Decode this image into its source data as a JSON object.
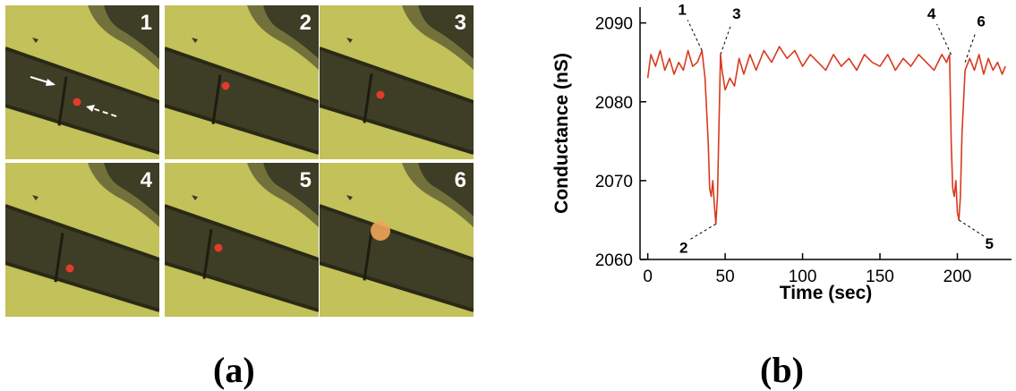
{
  "panels": {
    "a": {
      "label": "(a)"
    },
    "b": {
      "label": "(b)"
    }
  },
  "frames": [
    {
      "number": "1",
      "dot": "small",
      "arrows": true
    },
    {
      "number": "2",
      "dot": "small",
      "arrows": false
    },
    {
      "number": "3",
      "dot": "small",
      "arrows": false
    },
    {
      "number": "4",
      "dot": "small",
      "arrows": false
    },
    {
      "number": "5",
      "dot": "small",
      "arrows": false
    },
    {
      "number": "6",
      "dot": "large",
      "arrows": false
    }
  ],
  "colors": {
    "channel_fill": "#3e3d25",
    "background_fill": "#c2c15a",
    "dot": "#e23b2a",
    "dot_large": "#f0a45a",
    "trace": "#d83a1e"
  },
  "chart_data": {
    "type": "line",
    "title": "",
    "xlabel": "Time (sec)",
    "ylabel": "Conductance (nS)",
    "xlim": [
      -5,
      235
    ],
    "ylim": [
      2060,
      2092
    ],
    "xticks": [
      0,
      50,
      100,
      150,
      200
    ],
    "yticks": [
      2060,
      2070,
      2080,
      2090
    ],
    "series": [
      {
        "x": [
          0,
          2,
          5,
          8,
          11,
          14,
          17,
          20,
          23,
          26,
          29,
          32,
          35,
          37,
          39,
          40,
          41,
          42,
          43,
          44,
          45,
          46,
          47,
          48,
          50,
          53,
          56,
          59,
          62,
          66,
          70,
          75,
          80,
          85,
          90,
          95,
          100,
          105,
          110,
          115,
          120,
          125,
          130,
          135,
          140,
          145,
          150,
          155,
          160,
          165,
          170,
          175,
          180,
          185,
          190,
          193,
          195,
          196,
          197,
          198,
          199,
          200,
          201,
          202,
          203,
          205,
          208,
          211,
          214,
          217,
          220,
          223,
          226,
          229,
          231
        ],
        "values": [
          2083,
          2086,
          2084.5,
          2086.5,
          2084,
          2085.5,
          2083.5,
          2085,
          2084,
          2086.5,
          2084.5,
          2085,
          2086.5,
          2083,
          2075,
          2069,
          2068,
          2070,
          2067,
          2064.5,
          2068,
          2077,
          2086,
          2084,
          2081.5,
          2083,
          2082,
          2085.5,
          2083.5,
          2086,
          2084,
          2086.5,
          2085,
          2087,
          2085.5,
          2086.5,
          2084.5,
          2086,
          2085,
          2084,
          2086,
          2084.5,
          2085.5,
          2084,
          2086,
          2085,
          2084.5,
          2086,
          2084,
          2085.5,
          2084.5,
          2086,
          2085,
          2084,
          2086,
          2085,
          2086,
          2075,
          2069,
          2068,
          2070,
          2066,
          2065,
          2068,
          2076,
          2084,
          2085.5,
          2084,
          2086,
          2083.5,
          2085.5,
          2084,
          2085,
          2083.5,
          2084.5
        ]
      }
    ],
    "annotations": [
      {
        "text": "1",
        "x": 35,
        "y": 2086.5
      },
      {
        "text": "2",
        "x": 44,
        "y": 2064.5
      },
      {
        "text": "3",
        "x": 47,
        "y": 2086
      },
      {
        "text": "4",
        "x": 196,
        "y": 2086
      },
      {
        "text": "5",
        "x": 201,
        "y": 2065
      },
      {
        "text": "6",
        "x": 205,
        "y": 2085
      }
    ]
  }
}
